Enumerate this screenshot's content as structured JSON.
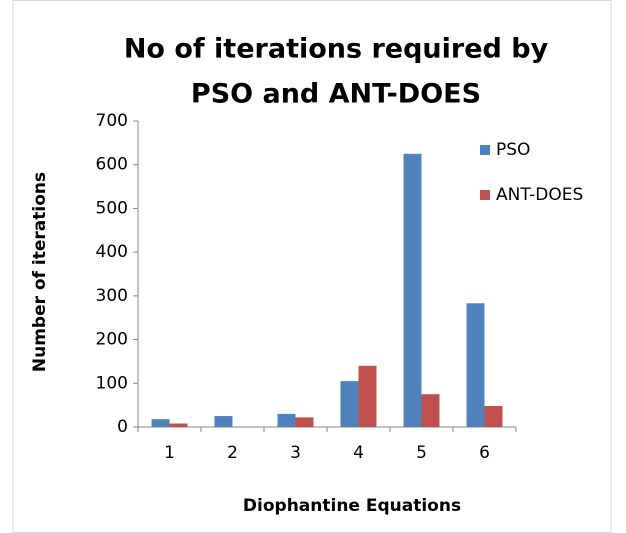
{
  "chart_data": {
    "type": "bar",
    "title": [
      "No of iterations required by",
      "PSO and ANT-DOES"
    ],
    "x_label": "Diophantine Equations",
    "y_label": "Number of iterations",
    "categories": [
      "1",
      "2",
      "3",
      "4",
      "5",
      "6"
    ],
    "series": [
      {
        "name": "PSO",
        "color": "#4f81bd",
        "values": [
          18,
          25,
          30,
          105,
          625,
          283
        ]
      },
      {
        "name": "ANT-DOES",
        "color": "#c0504d",
        "values": [
          8,
          0,
          22,
          140,
          75,
          48
        ]
      }
    ],
    "ylim": [
      0,
      700
    ],
    "yticks": [
      0,
      100,
      200,
      300,
      400,
      500,
      600,
      700
    ],
    "grid": false,
    "legend": "right"
  }
}
